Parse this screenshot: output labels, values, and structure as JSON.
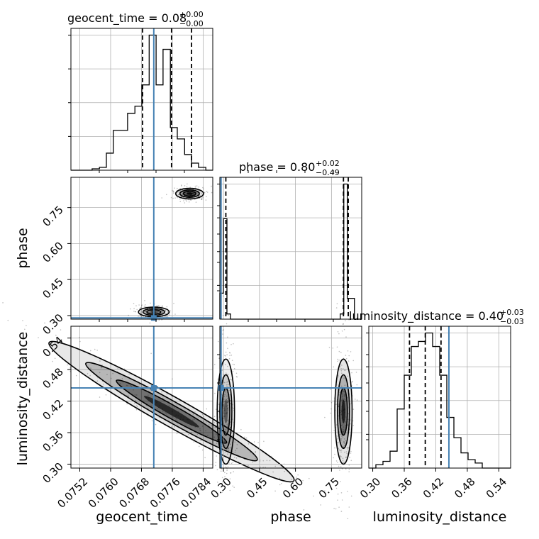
{
  "chart_data": {
    "type": "corner",
    "parameters": [
      "geocent_time",
      "phase",
      "luminosity_distance"
    ],
    "colors": {
      "truth": "#4682b4",
      "hist": "#000000",
      "grid": "#b0b0b0",
      "points": "#000000"
    },
    "titles": [
      {
        "label": "geocent_time = 0.08",
        "sup": "+0.00",
        "sub": "−0.00"
      },
      {
        "label": "phase = 0.80",
        "sup": "+0.02",
        "sub": "−0.49"
      },
      {
        "label": "luminosity_distance = 0.40",
        "sup": "+0.03",
        "sub": "−0.03"
      }
    ],
    "axes": {
      "geocent_time": {
        "range": [
          0.07497,
          0.07865
        ],
        "ticks": [
          0.0752,
          0.076,
          0.0768,
          0.0776,
          0.0784
        ],
        "tick_labels": [
          "0.0752",
          "0.0760",
          "0.0768",
          "0.0776",
          "0.0784"
        ]
      },
      "phase": {
        "range": [
          0.285,
          0.876
        ],
        "ticks": [
          0.3,
          0.45,
          0.6,
          0.75
        ],
        "tick_labels": [
          "0.30",
          "0.45",
          "0.60",
          "0.75"
        ]
      },
      "luminosity_distance": {
        "range": [
          0.2925,
          0.5625
        ],
        "ticks": [
          0.3,
          0.36,
          0.42,
          0.48,
          0.54
        ],
        "tick_labels": [
          "0.30",
          "0.36",
          "0.42",
          "0.48",
          "0.54"
        ]
      }
    },
    "truths": {
      "geocent_time": 0.07712,
      "phase": 0.29,
      "luminosity_distance": 0.445
    },
    "quantiles": {
      "geocent_time": [
        0.07683,
        0.07758,
        0.0781
      ],
      "phase": [
        0.31,
        0.8,
        0.82
      ],
      "luminosity_distance": [
        0.37,
        0.4,
        0.43
      ]
    },
    "histograms": {
      "geocent_time": {
        "edges": [
          0.07497,
          0.07515,
          0.07534,
          0.07552,
          0.07571,
          0.07589,
          0.07607,
          0.07626,
          0.07644,
          0.07663,
          0.07681,
          0.077,
          0.07718,
          0.07736,
          0.07755,
          0.07773,
          0.07792,
          0.0781,
          0.07828,
          0.07847,
          0.07865
        ],
        "counts": [
          0,
          0,
          0,
          1,
          2,
          12,
          28,
          28,
          40,
          45,
          60,
          95,
          60,
          85,
          30,
          22,
          11,
          5,
          2,
          0
        ]
      },
      "phase": {
        "edges": [
          0.285,
          0.2998,
          0.3145,
          0.3293,
          0.344,
          0.3588,
          0.3735,
          0.3883,
          0.4031,
          0.4178,
          0.4326,
          0.4473,
          0.4621,
          0.4768,
          0.4916,
          0.5063,
          0.5211,
          0.5359,
          0.5506,
          0.5654,
          0.5801,
          0.5949,
          0.6096,
          0.6244,
          0.6391,
          0.6539,
          0.6687,
          0.6834,
          0.6982,
          0.7129,
          0.7277,
          0.7424,
          0.7572,
          0.7719,
          0.7867,
          0.8014,
          0.8162,
          0.831,
          0.8457,
          0.8605,
          0.876
        ],
        "counts": [
          15,
          58,
          3,
          0,
          0,
          0,
          0,
          0,
          0,
          0,
          0,
          0,
          0,
          0,
          0,
          0,
          0,
          0,
          0,
          0,
          0,
          0,
          0,
          0,
          0,
          0,
          0,
          0,
          0,
          0,
          0,
          0,
          0,
          0,
          3,
          78,
          12,
          12,
          0,
          0
        ]
      },
      "luminosity_distance": {
        "edges": [
          0.2925,
          0.306,
          0.3195,
          0.333,
          0.3465,
          0.36,
          0.3735,
          0.387,
          0.4005,
          0.414,
          0.4275,
          0.441,
          0.4545,
          0.468,
          0.4815,
          0.495,
          0.5085,
          0.522,
          0.5355,
          0.549,
          0.5625
        ],
        "counts": [
          0,
          2,
          4,
          10,
          35,
          55,
          72,
          75,
          80,
          72,
          55,
          30,
          18,
          9,
          5,
          3,
          0,
          0,
          0,
          0
        ]
      }
    },
    "contours": [
      {
        "x": "geocent_time",
        "y": "phase",
        "modes": [
          {
            "center": [
              0.07805,
              0.808
            ],
            "halfwidth": [
              0.00018,
              0.011
            ],
            "density": 0.95
          },
          {
            "center": [
              0.07712,
              0.315
            ],
            "halfwidth": [
              0.0002,
              0.01
            ],
            "density": 0.55
          }
        ]
      },
      {
        "x": "geocent_time",
        "y": "luminosity_distance",
        "modes": [
          {
            "center": [
              0.07758,
              0.4
            ],
            "halfwidth": [
              0.0008,
              0.025
            ],
            "density": 0.75,
            "slope": -41.4
          }
        ]
      },
      {
        "x": "phase",
        "y": "luminosity_distance",
        "modes": [
          {
            "center": [
              0.31,
              0.4
            ],
            "halfwidth": [
              0.018,
              0.05
            ],
            "density": 0.5
          },
          {
            "center": [
              0.8,
              0.4
            ],
            "halfwidth": [
              0.018,
              0.05
            ],
            "density": 0.8
          }
        ]
      }
    ]
  }
}
